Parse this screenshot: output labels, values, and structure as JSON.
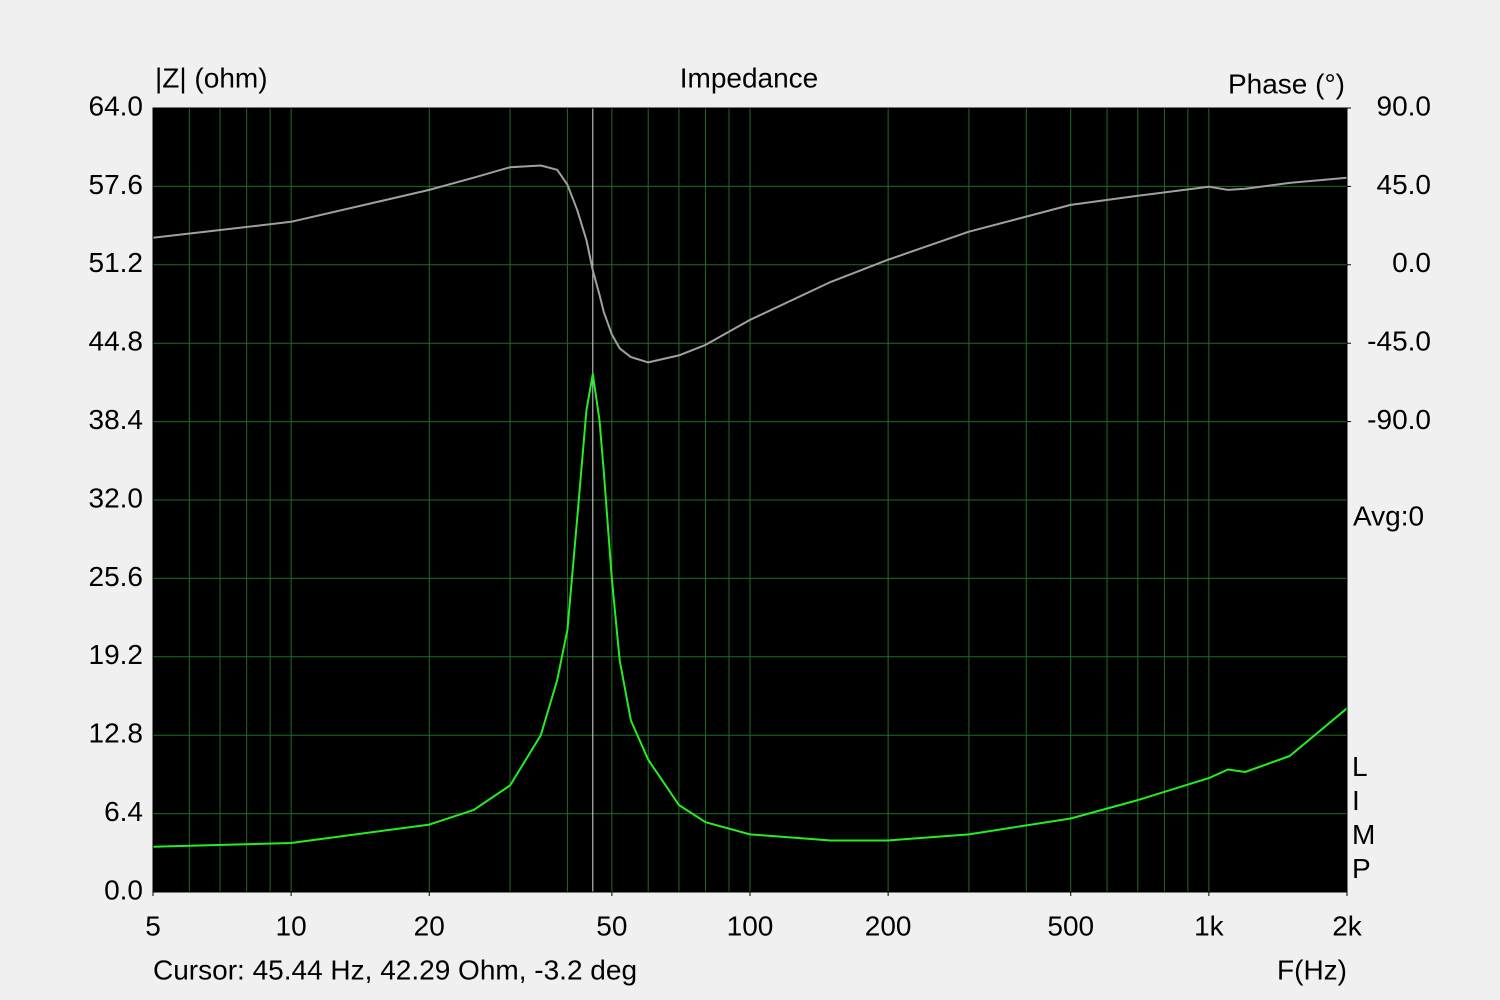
{
  "chart_data": {
    "type": "line",
    "title": "Impedance",
    "ylabel": "|Z| (ohm)",
    "y2label": "Phase (°)",
    "xlabel": "F(Hz)",
    "x_scale": "log",
    "x": [
      5,
      10,
      20,
      25,
      30,
      35,
      38,
      40,
      42,
      44,
      45.44,
      47,
      48,
      50,
      52,
      55,
      60,
      70,
      80,
      100,
      150,
      200,
      300,
      500,
      700,
      1000,
      1100,
      1200,
      1500,
      2000
    ],
    "series": [
      {
        "name": "|Z|",
        "color": "#22ee22",
        "values": [
          3.7,
          4.0,
          5.5,
          6.7,
          8.7,
          12.8,
          17.3,
          21.4,
          30.4,
          39.3,
          42.29,
          38.5,
          34.4,
          25.5,
          18.9,
          14.0,
          10.8,
          7.1,
          5.7,
          4.7,
          4.2,
          4.2,
          4.7,
          6.0,
          7.5,
          9.3,
          10.0,
          9.8,
          11.1,
          15.0
        ]
      },
      {
        "name": "Phase",
        "color": "#a0a0a0",
        "axis": "y2",
        "values": [
          15.5,
          24.7,
          43,
          50,
          56,
          57,
          54.5,
          46,
          31.6,
          14.3,
          -3.2,
          -17.2,
          -27,
          -40,
          -48,
          -53,
          -56,
          -52,
          -46,
          -31.6,
          -9.8,
          2.9,
          19,
          34.4,
          39.6,
          44.8,
          43,
          43.6,
          47,
          50
        ]
      }
    ],
    "xlim": [
      5,
      2000
    ],
    "xticks": [
      5,
      10,
      20,
      50,
      100,
      200,
      500,
      {
        "value": 1000,
        "label": "1k"
      },
      {
        "value": 2000,
        "label": "2k"
      }
    ],
    "xgrid": [
      5,
      6,
      7,
      8,
      9,
      10,
      20,
      30,
      40,
      50,
      60,
      70,
      80,
      90,
      100,
      200,
      300,
      400,
      500,
      600,
      700,
      800,
      900,
      1000,
      2000
    ],
    "ylim": [
      0,
      64
    ],
    "yticks": [
      {
        "value": 0,
        "label": "0.0"
      },
      6.4,
      12.8,
      19.2,
      25.6,
      {
        "value": 32,
        "label": "32.0"
      },
      38.4,
      44.8,
      51.2,
      57.6,
      {
        "value": 64,
        "label": "64.0"
      }
    ],
    "y2lim": [
      -360,
      90
    ],
    "y2ticks": [
      {
        "value": 90,
        "label": "90.0"
      },
      {
        "value": 45,
        "label": "45.0"
      },
      {
        "value": 0,
        "label": "0.0"
      },
      {
        "value": -45,
        "label": "-45.0"
      },
      {
        "value": -90,
        "label": "-90.0"
      }
    ],
    "grid": true,
    "grid_color": "#1e6e1e",
    "cursor": {
      "x": 45.44,
      "label": "Cursor: 45.44 Hz, 42.29 Ohm, -3.2 deg",
      "color": "#dddddd"
    },
    "avg_label": "Avg:0",
    "side_label": "LIMP"
  }
}
